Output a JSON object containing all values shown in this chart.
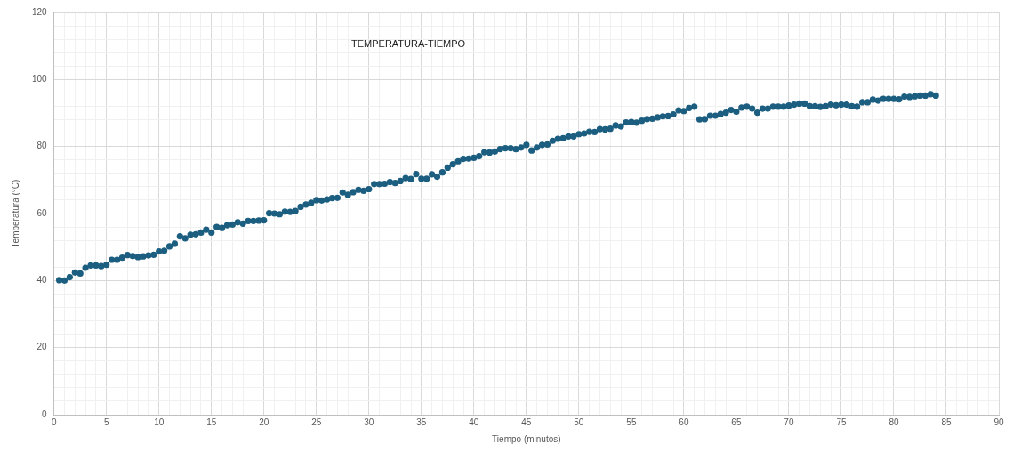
{
  "chart_data": {
    "type": "scatter",
    "title": "TEMPERATURA-TIEMPO",
    "xlabel": "Tiempo (minutos)",
    "ylabel": "Temperatura (°C)",
    "xlim": [
      0,
      90
    ],
    "ylim": [
      0,
      120
    ],
    "xticks": [
      0,
      {
        "value": 1,
        "label": null
      },
      {
        "value": 2,
        "label": null
      },
      {
        "value": 3,
        "label": null
      },
      {
        "value": 4,
        "label": null
      },
      5,
      {
        "value": 6,
        "label": null
      },
      {
        "value": 7,
        "label": null
      },
      {
        "value": 8,
        "label": null
      },
      {
        "value": 9,
        "label": null
      },
      10,
      {
        "value": 11,
        "label": null
      },
      {
        "value": 12,
        "label": null
      },
      {
        "value": 13,
        "label": null
      },
      {
        "value": 14,
        "label": null
      },
      15,
      {
        "value": 16,
        "label": null
      },
      {
        "value": 17,
        "label": null
      },
      {
        "value": 18,
        "label": null
      },
      {
        "value": 19,
        "label": null
      },
      20,
      {
        "value": 21,
        "label": null
      },
      {
        "value": 22,
        "label": null
      },
      {
        "value": 23,
        "label": null
      },
      {
        "value": 24,
        "label": null
      },
      25,
      {
        "value": 26,
        "label": null
      },
      {
        "value": 27,
        "label": null
      },
      {
        "value": 28,
        "label": null
      },
      {
        "value": 29,
        "label": null
      },
      30,
      {
        "value": 31,
        "label": null
      },
      {
        "value": 32,
        "label": null
      },
      {
        "value": 33,
        "label": null
      },
      {
        "value": 34,
        "label": null
      },
      35,
      {
        "value": 36,
        "label": null
      },
      {
        "value": 37,
        "label": null
      },
      {
        "value": 38,
        "label": null
      },
      {
        "value": 39,
        "label": null
      },
      40,
      {
        "value": 41,
        "label": null
      },
      {
        "value": 42,
        "label": null
      },
      {
        "value": 43,
        "label": null
      },
      {
        "value": 44,
        "label": null
      },
      45,
      {
        "value": 46,
        "label": null
      },
      {
        "value": 47,
        "label": null
      },
      {
        "value": 48,
        "label": null
      },
      {
        "value": 49,
        "label": null
      },
      50,
      {
        "value": 51,
        "label": null
      },
      {
        "value": 52,
        "label": null
      },
      {
        "value": 53,
        "label": null
      },
      {
        "value": 54,
        "label": null
      },
      55,
      {
        "value": 56,
        "label": null
      },
      {
        "value": 57,
        "label": null
      },
      {
        "value": 58,
        "label": null
      },
      {
        "value": 59,
        "label": null
      },
      60,
      {
        "value": 61,
        "label": null
      },
      {
        "value": 62,
        "label": null
      },
      {
        "value": 63,
        "label": null
      },
      {
        "value": 64,
        "label": null
      },
      65,
      {
        "value": 66,
        "label": null
      },
      {
        "value": 67,
        "label": null
      },
      {
        "value": 68,
        "label": null
      },
      {
        "value": 69,
        "label": null
      },
      70,
      {
        "value": 71,
        "label": null
      },
      {
        "value": 72,
        "label": null
      },
      {
        "value": 73,
        "label": null
      },
      {
        "value": 74,
        "label": null
      },
      75,
      {
        "value": 76,
        "label": null
      },
      {
        "value": 77,
        "label": null
      },
      {
        "value": 78,
        "label": null
      },
      {
        "value": 79,
        "label": null
      },
      80,
      {
        "value": 81,
        "label": null
      },
      {
        "value": 82,
        "label": null
      },
      {
        "value": 83,
        "label": null
      },
      {
        "value": 84,
        "label": null
      },
      85,
      {
        "value": 86,
        "label": null
      },
      {
        "value": 87,
        "label": null
      },
      {
        "value": 88,
        "label": null
      },
      {
        "value": 89,
        "label": null
      },
      90
    ],
    "yticks": [
      0,
      {
        "value": 4,
        "label": null
      },
      {
        "value": 8,
        "label": null
      },
      {
        "value": 12,
        "label": null
      },
      {
        "value": 16,
        "label": null
      },
      20,
      {
        "value": 24,
        "label": null
      },
      {
        "value": 28,
        "label": null
      },
      {
        "value": 32,
        "label": null
      },
      {
        "value": 36,
        "label": null
      },
      40,
      {
        "value": 44,
        "label": null
      },
      {
        "value": 48,
        "label": null
      },
      {
        "value": 52,
        "label": null
      },
      {
        "value": 56,
        "label": null
      },
      60,
      {
        "value": 64,
        "label": null
      },
      {
        "value": 68,
        "label": null
      },
      {
        "value": 72,
        "label": null
      },
      {
        "value": 76,
        "label": null
      },
      80,
      {
        "value": 84,
        "label": null
      },
      {
        "value": 88,
        "label": null
      },
      {
        "value": 92,
        "label": null
      },
      {
        "value": 96,
        "label": null
      },
      100,
      {
        "value": 104,
        "label": null
      },
      {
        "value": 108,
        "label": null
      },
      {
        "value": 112,
        "label": null
      },
      {
        "value": 116,
        "label": null
      },
      120
    ],
    "grid": true,
    "marker": "circle",
    "series": [
      {
        "color": "#1b5e80",
        "x": [
          0.5,
          1,
          1.5,
          2,
          2.5,
          3,
          3.5,
          4,
          4.5,
          5,
          5.5,
          6,
          6.5,
          7,
          7.5,
          8,
          8.5,
          9,
          9.5,
          10,
          10.5,
          11,
          11.5,
          12,
          12.5,
          13,
          13.5,
          14,
          14.5,
          15,
          15.5,
          16,
          16.5,
          17,
          17.5,
          18,
          18.5,
          19,
          19.5,
          20,
          20.5,
          21,
          21.5,
          22,
          22.5,
          23,
          23.5,
          24,
          24.5,
          25,
          25.5,
          26,
          26.5,
          27,
          27.5,
          28,
          28.5,
          29,
          29.5,
          30,
          30.5,
          31,
          31.5,
          32,
          32.5,
          33,
          33.5,
          34,
          34.5,
          35,
          35.5,
          36,
          36.5,
          37,
          37.5,
          38,
          38.5,
          39,
          39.5,
          40,
          40.5,
          41,
          41.5,
          42,
          42.5,
          43,
          43.5,
          44,
          44.5,
          45,
          45.5,
          46,
          46.5,
          47,
          47.5,
          48,
          48.5,
          49,
          49.5,
          50,
          50.5,
          51,
          51.5,
          52,
          52.5,
          53,
          53.5,
          54,
          54.5,
          55,
          55.5,
          56,
          56.5,
          57,
          57.5,
          58,
          58.5,
          59,
          59.5,
          60,
          60.5,
          61,
          61.5,
          62,
          62.5,
          63,
          63.5,
          64,
          64.5,
          65,
          65.5,
          66,
          66.5,
          67,
          67.5,
          68,
          68.5,
          69,
          69.5,
          70,
          70.5,
          71,
          71.5,
          72,
          72.5,
          73,
          73.5,
          74,
          74.5,
          75,
          75.5,
          76,
          76.5,
          77,
          77.5,
          78,
          78.5,
          79,
          79.5,
          80,
          80.5,
          81,
          81.5,
          82,
          82.5,
          83,
          83.5,
          84
        ],
        "values": [
          40.1,
          40.0,
          41.0,
          42.4,
          42.1,
          43.8,
          44.5,
          44.5,
          44.3,
          44.7,
          46.2,
          46.2,
          46.8,
          47.6,
          47.3,
          47.0,
          47.2,
          47.5,
          47.7,
          48.7,
          48.9,
          50.2,
          51.0,
          53.2,
          52.6,
          53.7,
          53.8,
          54.3,
          55.2,
          54.3,
          56.0,
          55.7,
          56.5,
          56.7,
          57.4,
          57.0,
          57.8,
          57.8,
          57.9,
          58.0,
          60.1,
          60.0,
          59.8,
          60.6,
          60.5,
          60.8,
          62.0,
          62.7,
          63.2,
          64.0,
          63.9,
          64.2,
          64.6,
          64.7,
          66.3,
          65.6,
          66.4,
          67.1,
          66.8,
          67.3,
          68.8,
          68.8,
          68.9,
          69.4,
          69.1,
          69.7,
          70.6,
          70.3,
          71.8,
          70.4,
          70.4,
          71.7,
          71.0,
          72.3,
          73.7,
          74.7,
          75.6,
          76.3,
          76.4,
          76.6,
          77.1,
          78.3,
          78.2,
          78.5,
          79.2,
          79.5,
          79.5,
          79.2,
          79.7,
          80.5,
          78.8,
          79.7,
          80.5,
          80.6,
          81.7,
          82.3,
          82.5,
          83.0,
          83.0,
          83.7,
          83.9,
          84.4,
          84.3,
          85.2,
          85.1,
          85.3,
          86.3,
          86.0,
          87.2,
          87.3,
          87.1,
          87.7,
          88.2,
          88.3,
          88.7,
          89.0,
          89.1,
          89.6,
          90.8,
          90.6,
          91.5,
          91.9,
          88.1,
          88.2,
          89.2,
          89.2,
          89.7,
          90.1,
          90.9,
          90.4,
          91.6,
          91.9,
          91.3,
          90.1,
          91.3,
          91.3,
          91.9,
          91.9,
          91.9,
          92.2,
          92.5,
          92.8,
          92.8,
          92.0,
          92.0,
          91.8,
          92.0,
          92.5,
          92.3,
          92.5,
          92.5,
          92.0,
          91.9,
          93.2,
          93.2,
          94.0,
          93.7,
          94.2,
          94.2,
          94.2,
          94.1,
          94.9,
          94.8,
          95.0,
          95.2,
          95.2,
          95.6,
          95.2
        ]
      }
    ]
  }
}
